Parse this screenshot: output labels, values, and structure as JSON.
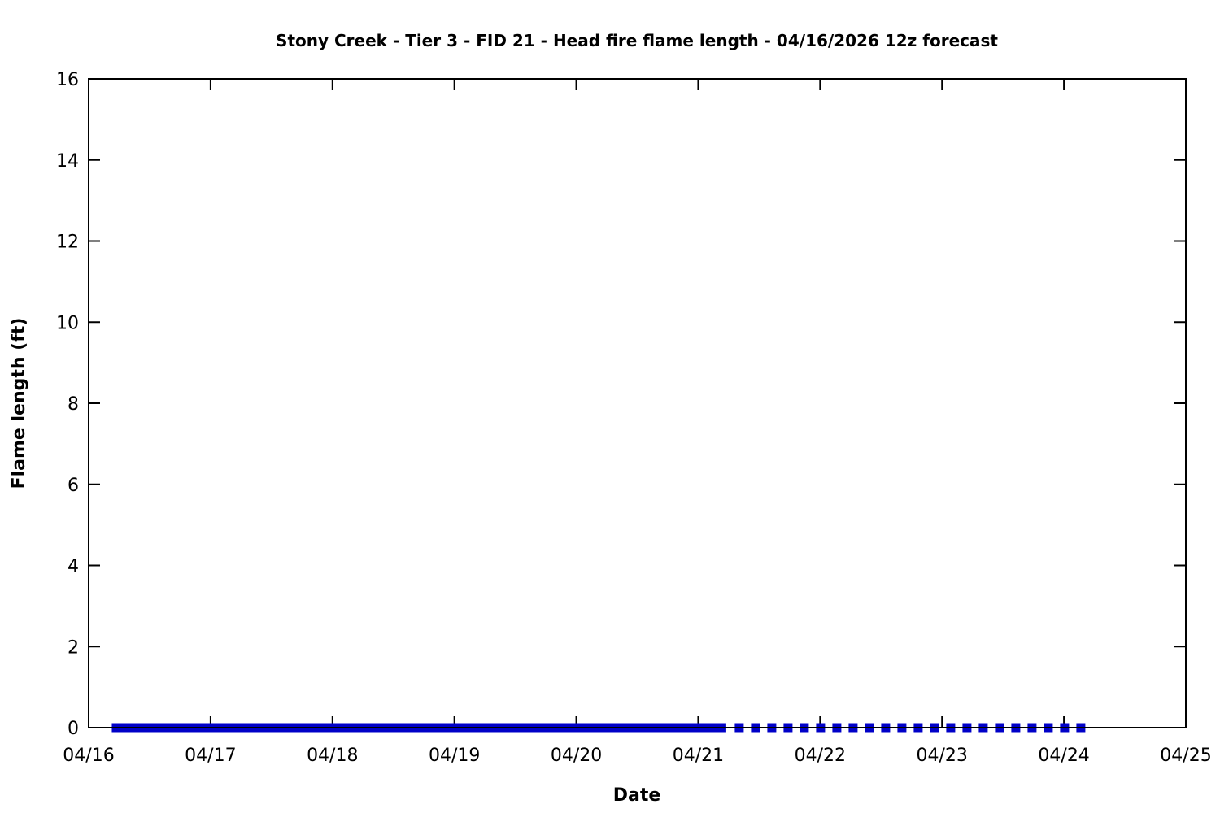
{
  "chart_data": {
    "type": "line",
    "title": "Stony Creek - Tier 3 - FID 21 - Head fire flame length - 04/16/2026 12z forecast",
    "xlabel": "Date",
    "ylabel": "Flame length (ft)",
    "x_tick_labels": [
      "04/16",
      "04/17",
      "04/18",
      "04/19",
      "04/20",
      "04/21",
      "04/22",
      "04/23",
      "04/24",
      "04/25"
    ],
    "x_range_days": [
      0,
      9
    ],
    "ylim": [
      0,
      16
    ],
    "y_ticks": [
      0,
      2,
      4,
      6,
      8,
      10,
      12,
      14,
      16
    ],
    "grid": false,
    "legend": "none",
    "border_box": true,
    "ticks_inward_mirrored": true,
    "line_color": "#0000C8",
    "axis_color": "#000000",
    "background_color": "#ffffff",
    "series": [
      {
        "name": "flame-length-solid-segment",
        "style": "solid",
        "x_days": [
          0.19,
          5.23
        ],
        "y": [
          0,
          0
        ]
      },
      {
        "name": "flame-length-dashed-segment",
        "style": "dashed",
        "x_days": [
          5.3,
          8.23
        ],
        "y": [
          0,
          0
        ]
      }
    ]
  }
}
